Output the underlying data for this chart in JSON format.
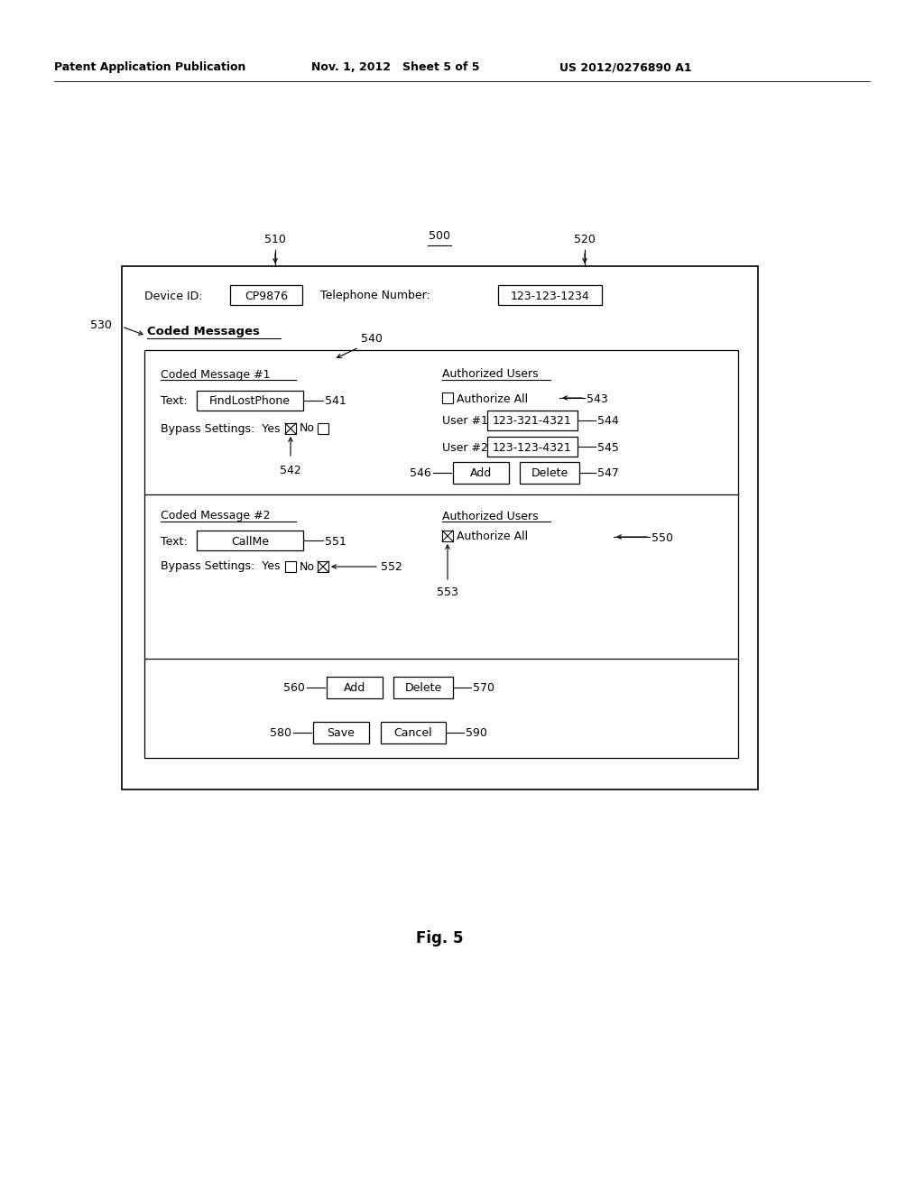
{
  "bg_color": "#ffffff",
  "header_left": "Patent Application Publication",
  "header_mid": "Nov. 1, 2012   Sheet 5 of 5",
  "header_right": "US 2012/0276890 A1",
  "fig_label": "Fig. 5",
  "label_500": "500",
  "label_510": "510",
  "label_520": "520",
  "label_530": "530",
  "device_id_label": "Device ID:",
  "device_id_val": "CP9876",
  "tel_label": "Telephone Number:",
  "tel_val": "123-123-1234",
  "coded_messages_label": "Coded Messages",
  "label_540": "540",
  "cm1_title": "Coded Message #1",
  "cm1_text_label": "Text:",
  "cm1_text_val": "FindLostPhone",
  "label_541": "541",
  "cm1_bypass": "Bypass Settings:  Yes",
  "label_542": "542",
  "auth1_title": "Authorized Users",
  "auth1_authorize": "Authorize All",
  "label_543": "543",
  "auth1_user1_label": "User #1",
  "auth1_user1_val": "123-321-4321",
  "label_544": "544",
  "auth1_user2_label": "User #2",
  "auth1_user2_val": "123-123-4321",
  "label_545": "545",
  "label_546": "546",
  "btn_add1": "Add",
  "btn_delete1": "Delete",
  "label_547": "547",
  "cm2_title": "Coded Message #2",
  "cm2_text_label": "Text:",
  "cm2_text_val": "CallMe",
  "label_551": "551",
  "cm2_bypass": "Bypass Settings:  Yes",
  "label_552": "552",
  "auth2_title": "Authorized Users",
  "auth2_authorize": "Authorize All",
  "label_550": "550",
  "label_553": "553",
  "btn_add2": "Add",
  "btn_delete2": "Delete",
  "label_560": "560",
  "label_570": "570",
  "btn_save": "Save",
  "btn_cancel": "Cancel",
  "label_580": "580",
  "label_590": "590"
}
